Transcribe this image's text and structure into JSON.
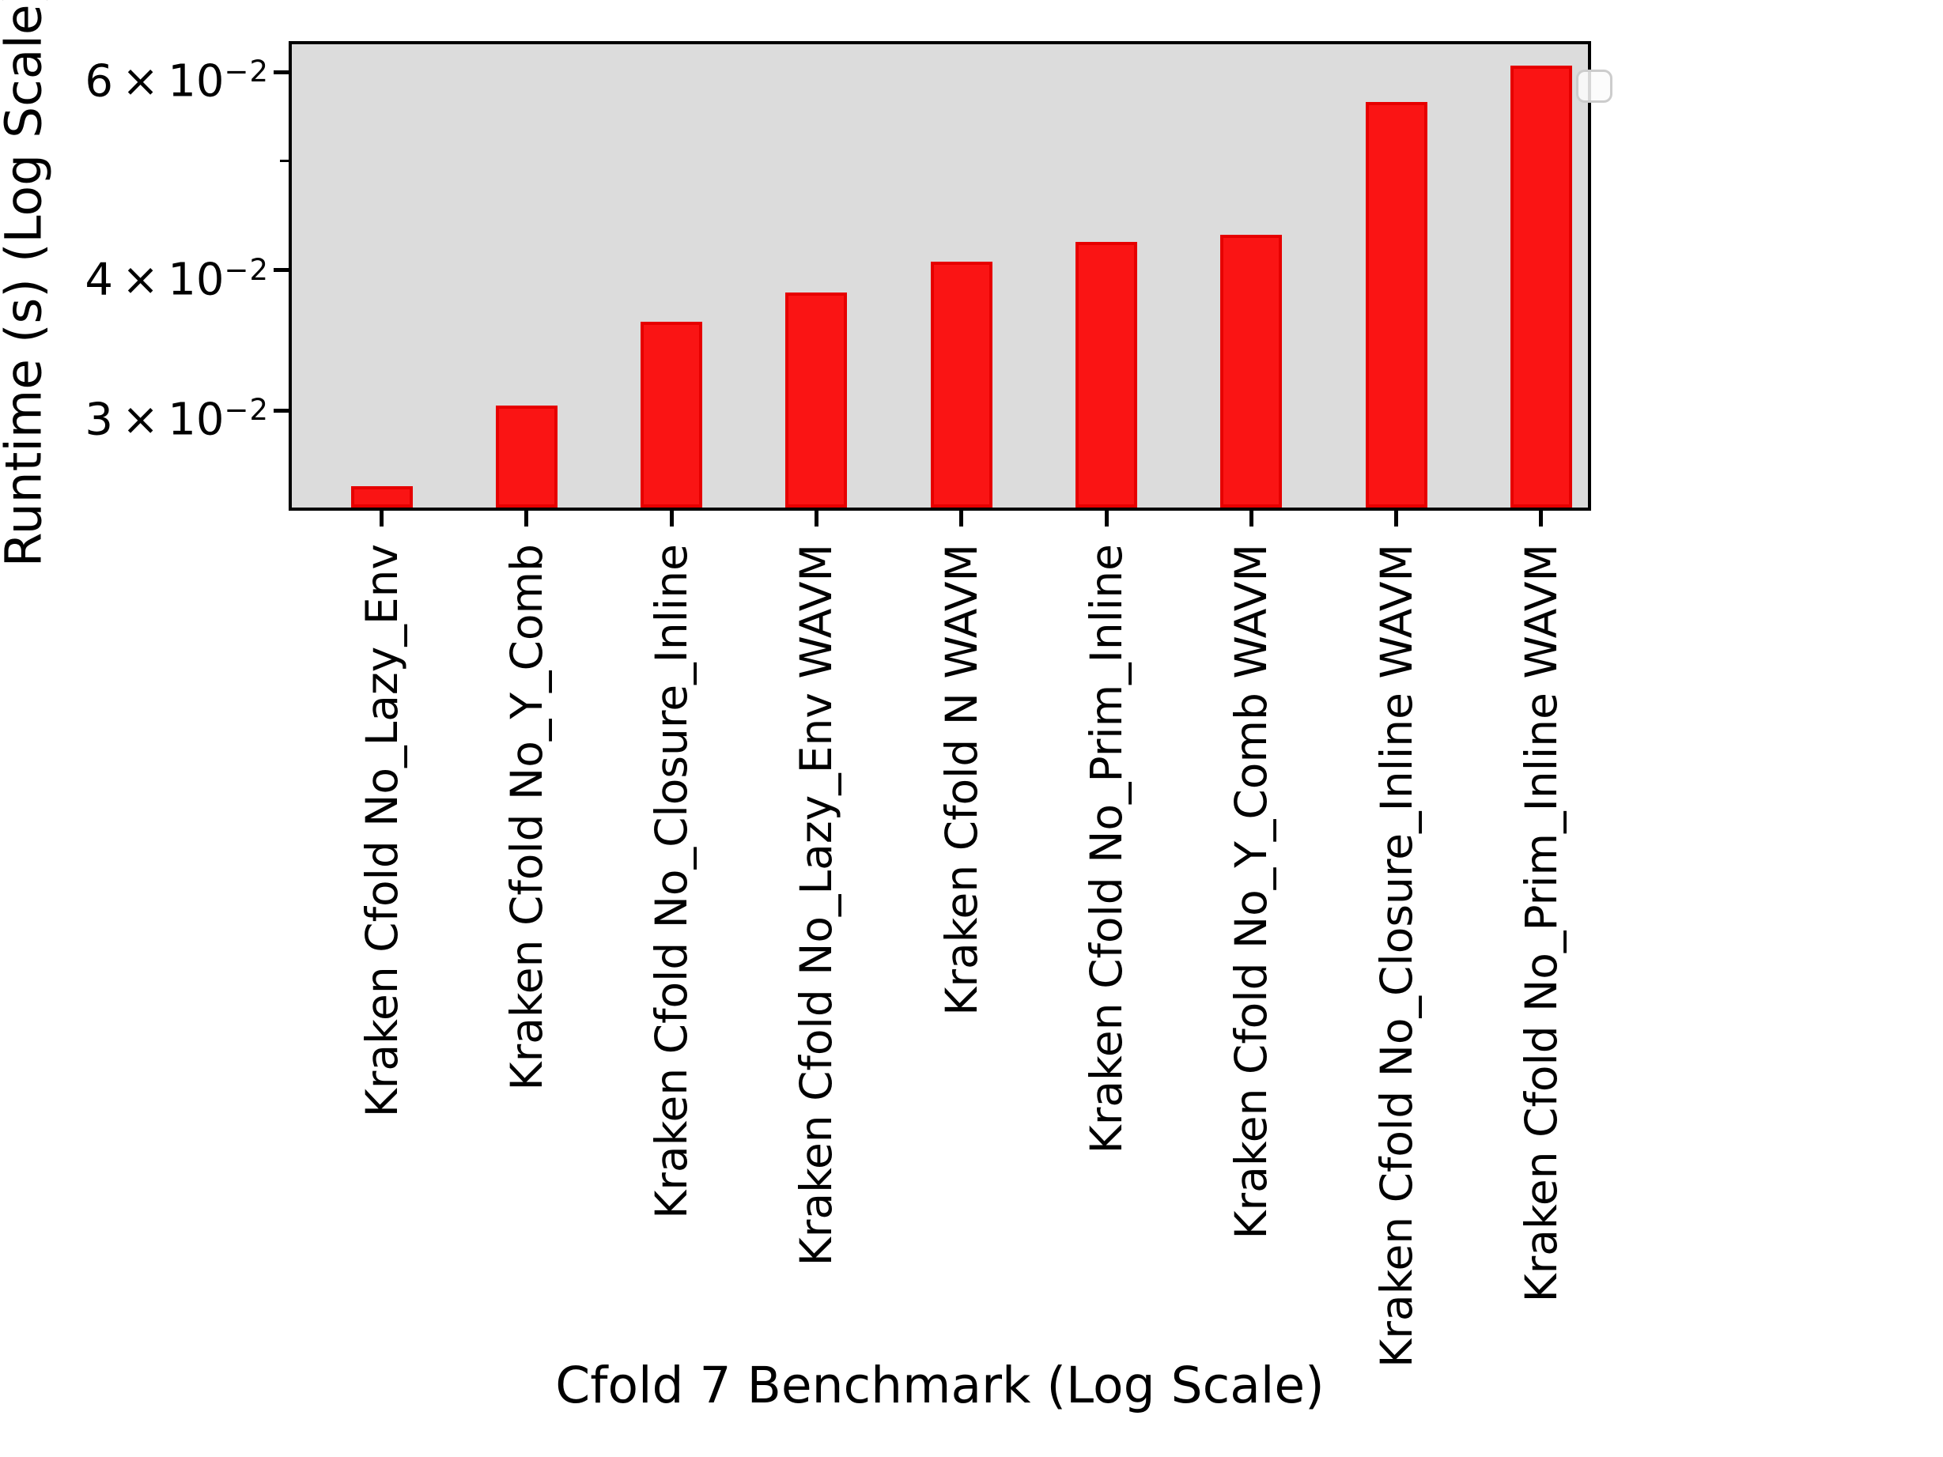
{
  "chart_data": {
    "type": "bar",
    "title": "",
    "xlabel": "Cfold 7 Benchmark (Log Scale)",
    "ylabel": "Runtime (s) (Log Scale)",
    "yscale": "log",
    "ylim": [
      0.0246,
      0.0635
    ],
    "grid": false,
    "categories": [
      "Kraken Cfold No_Lazy_Env",
      "Kraken Cfold No_Y_Comb",
      "Kraken Cfold No_Closure_Inline",
      "Kraken Cfold No_Lazy_Env WAVM",
      "Kraken Cfold N WAVM",
      "Kraken Cfold No_Prim_Inline",
      "Kraken Cfold No_Y_Comb WAVM",
      "Kraken Cfold No_Closure_Inline WAVM",
      "Kraken Cfold No_Prim_Inline WAVM"
    ],
    "values": [
      0.0257,
      0.0303,
      0.036,
      0.0382,
      0.0407,
      0.0424,
      0.043,
      0.0564,
      0.0608
    ],
    "yticks": [
      {
        "value": 0.06,
        "text": "6 × 10",
        "sup": "−2",
        "minor": false
      },
      {
        "value": 0.05,
        "text": "",
        "sup": "",
        "minor": true
      },
      {
        "value": 0.04,
        "text": "4 × 10",
        "sup": "−2",
        "minor": false
      },
      {
        "value": 0.03,
        "text": "3 × 10",
        "sup": "−2",
        "minor": false
      }
    ],
    "legend": {
      "visible": true,
      "entries": []
    },
    "colors": {
      "bar_fill": "#fa1414",
      "bar_edge": "#e60000",
      "plot_bg": "#dcdcdc",
      "fig_bg": "#ffffff",
      "spine": "#000000",
      "tick": "#000000",
      "text": "#000000",
      "legend_border": "#cccccc",
      "legend_bg": "#fcfcfc"
    }
  }
}
